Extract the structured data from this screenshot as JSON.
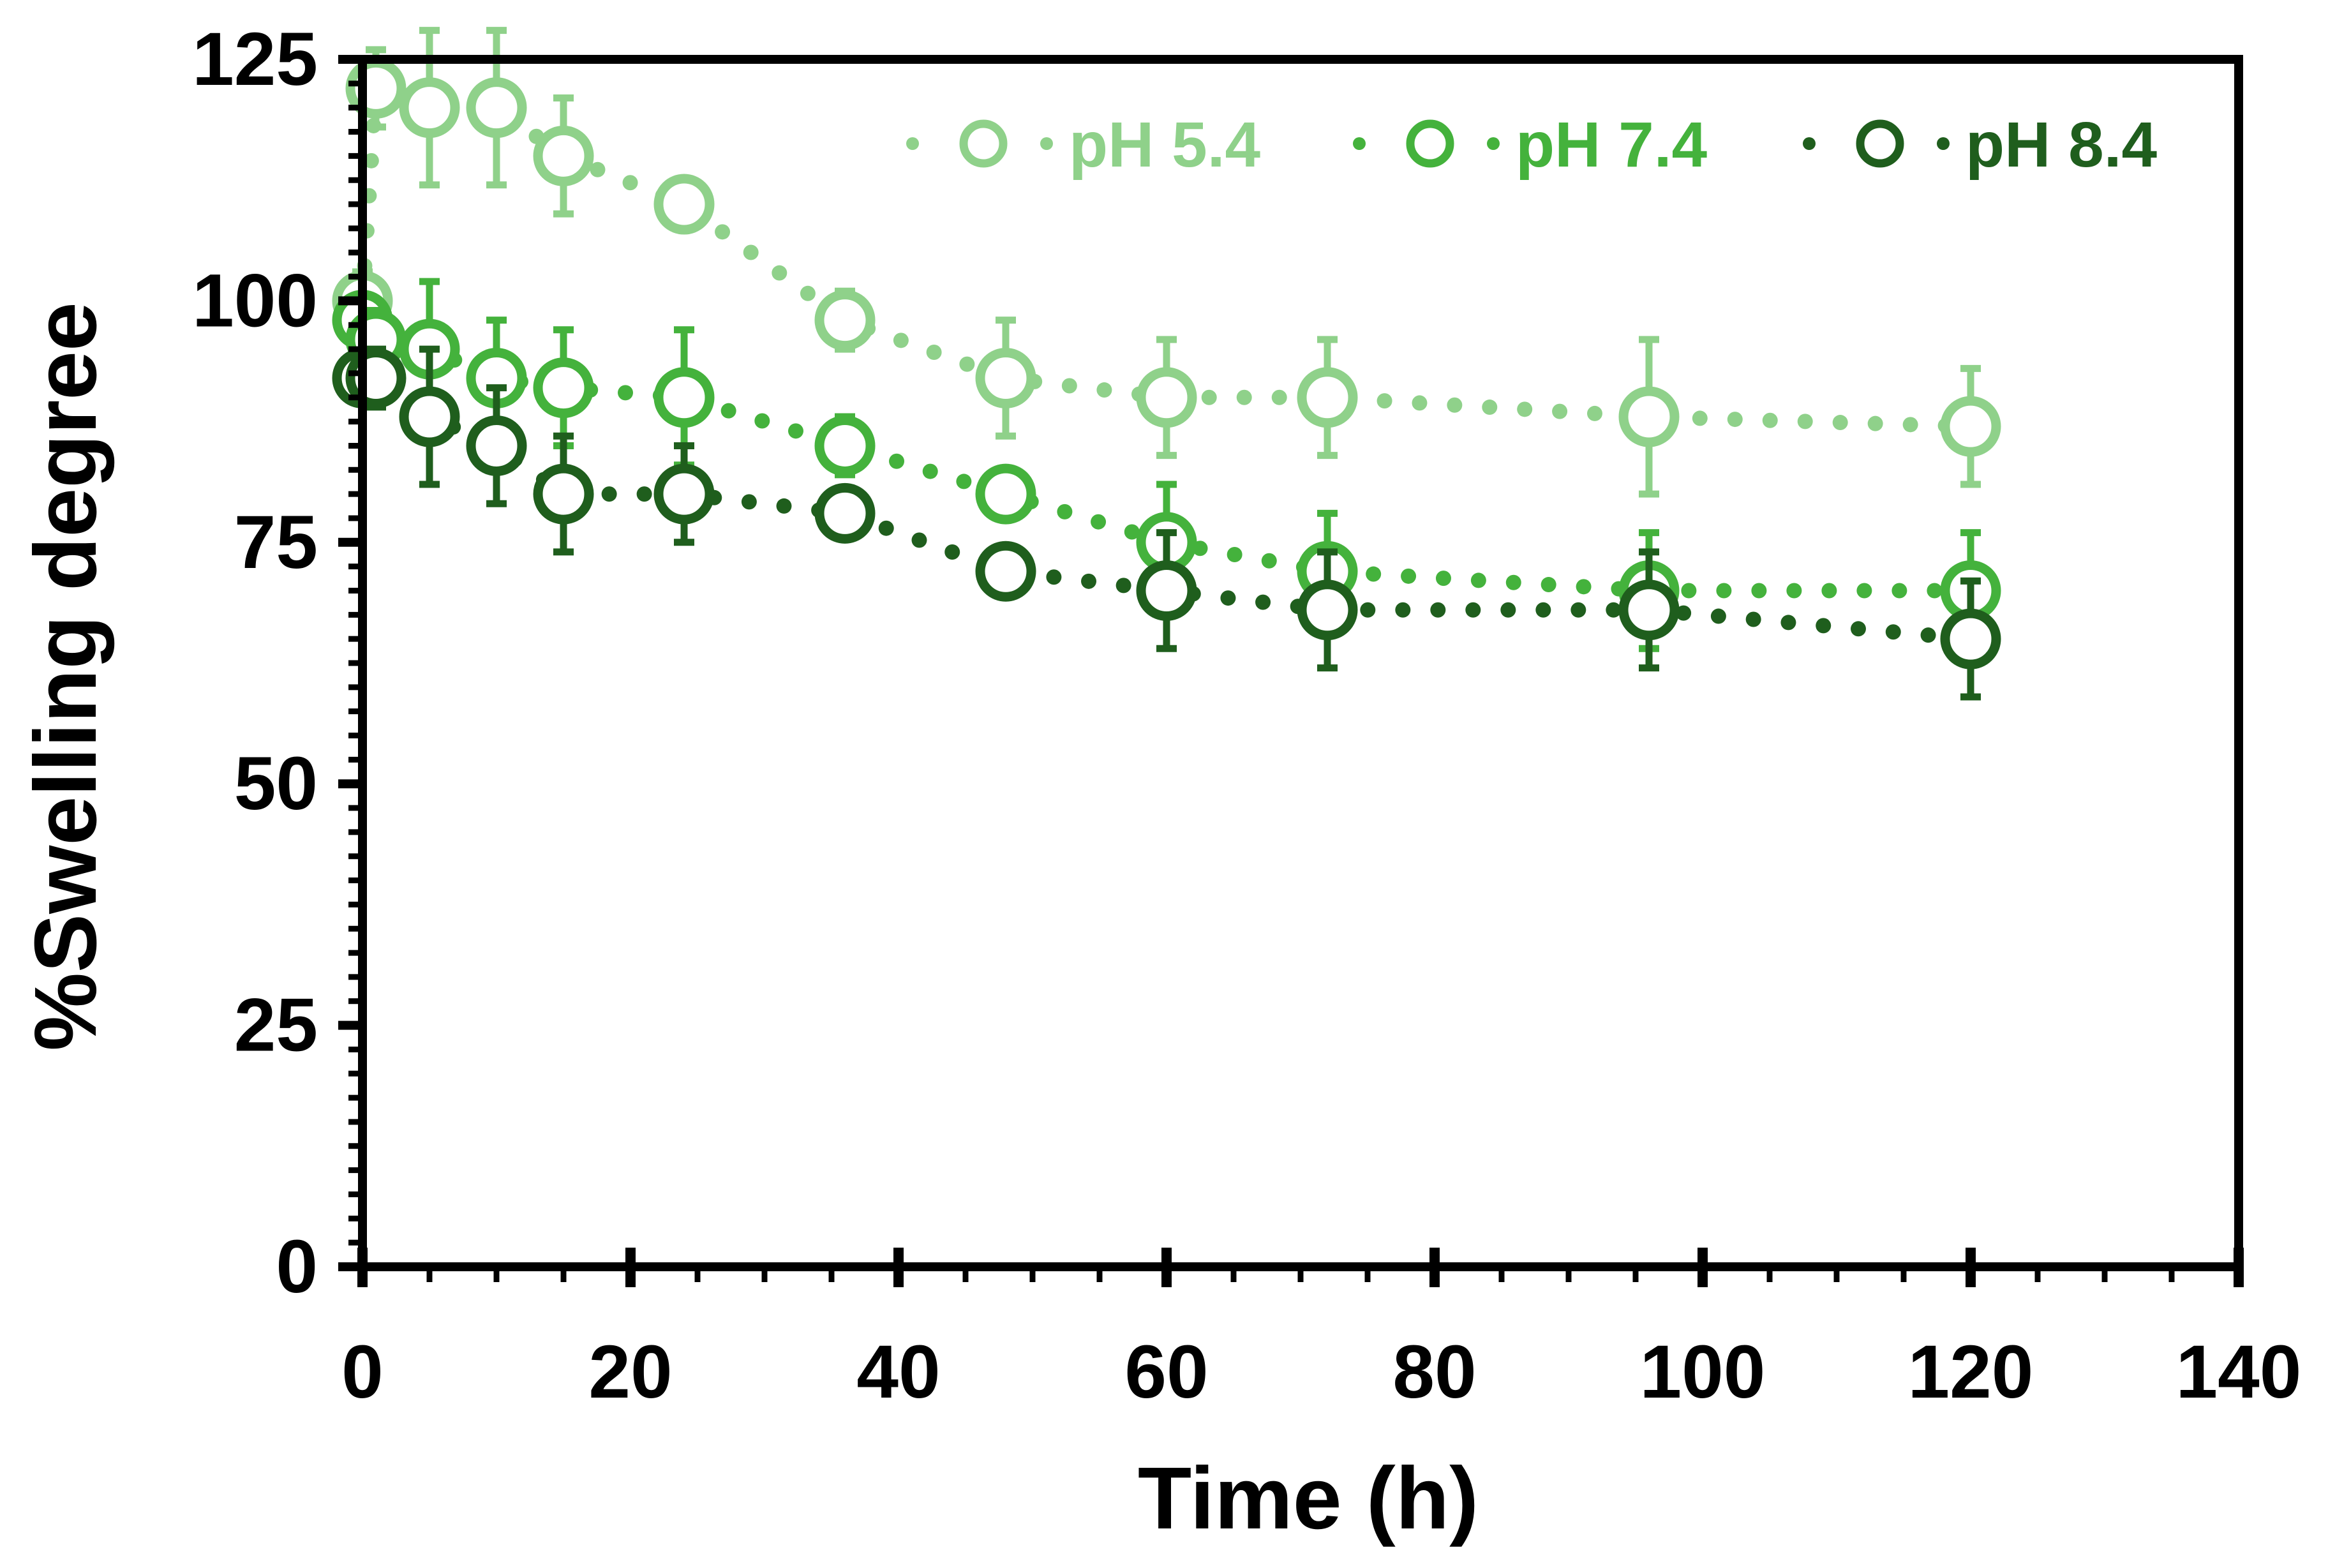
{
  "chart_data": {
    "type": "line",
    "title": "",
    "xlabel": "Time (h)",
    "ylabel": "%Swelling degree",
    "xlim": [
      0,
      140
    ],
    "ylim": [
      0,
      125
    ],
    "x_ticks": [
      0,
      20,
      40,
      60,
      80,
      100,
      120,
      140
    ],
    "y_ticks": [
      0,
      25,
      50,
      75,
      100,
      125
    ],
    "x_tick_labels": [
      "0",
      "20",
      "40",
      "60",
      "80",
      "100",
      "120",
      "140"
    ],
    "y_tick_labels": [
      "0",
      "25",
      "50",
      "75",
      "100",
      "125"
    ],
    "grid": false,
    "legend_position": "top-right",
    "series": [
      {
        "name": "pH 5.4",
        "color": "#8fd18a",
        "x": [
          0,
          1,
          5,
          10,
          15,
          24,
          36,
          48,
          60,
          72,
          96,
          120
        ],
        "y": [
          100,
          122,
          120,
          120,
          115,
          110,
          98,
          92,
          90,
          90,
          88,
          87
        ],
        "error": [
          3,
          4,
          8,
          8,
          6,
          2,
          3,
          6,
          6,
          6,
          8,
          6
        ]
      },
      {
        "name": "pH 7.4",
        "color": "#44b23c",
        "x": [
          0,
          1,
          5,
          10,
          15,
          24,
          36,
          48,
          60,
          72,
          96,
          120
        ],
        "y": [
          98,
          96,
          95,
          92,
          91,
          90,
          85,
          80,
          75,
          72,
          70,
          70
        ],
        "error": [
          2,
          3,
          7,
          6,
          6,
          7,
          3,
          2,
          6,
          6,
          6,
          6
        ]
      },
      {
        "name": "pH 8.4",
        "color": "#1f5e1d",
        "x": [
          0,
          1,
          5,
          10,
          15,
          24,
          36,
          48,
          60,
          72,
          96,
          120
        ],
        "y": [
          92,
          92,
          88,
          85,
          80,
          80,
          78,
          72,
          70,
          68,
          68,
          65
        ],
        "error": [
          2,
          3,
          7,
          6,
          6,
          5,
          2,
          2,
          6,
          6,
          6,
          6
        ]
      }
    ]
  }
}
